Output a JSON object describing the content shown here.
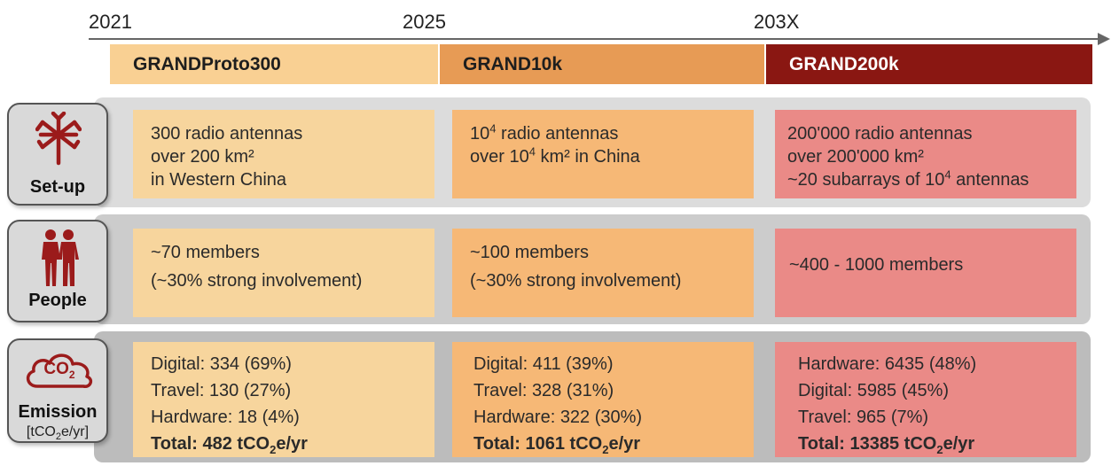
{
  "timeline": {
    "years": [
      "2021",
      "2025",
      "203X"
    ]
  },
  "phases": [
    {
      "label": "GRANDProto300"
    },
    {
      "label": "GRAND10k"
    },
    {
      "label": "GRAND200k"
    }
  ],
  "rows": {
    "setup": {
      "label": "Set-up",
      "icon": "radio-antenna-icon",
      "cells": [
        [
          "300 radio antennas",
          "over 200 km²",
          "in Western China"
        ],
        [
          "radio antennas",
          "km² in China"
        ],
        [
          "200'000 radio antennas",
          "over 200'000 km²",
          "~20 subarrays of 10",
          "antennas"
        ]
      ],
      "superscript": "4",
      "over_prefix": "over 10",
      "ten": "10"
    },
    "people": {
      "label": "People",
      "icon": "people-icon",
      "cells": [
        [
          "~70 members",
          "(~30% strong involvement)"
        ],
        [
          "~100 members",
          "(~30% strong involvement)"
        ],
        [
          "~400 - 1000 members"
        ]
      ]
    },
    "emission": {
      "label": "Emission",
      "unit_prefix": "[tCO",
      "unit_sub": "2",
      "unit_suffix": "e/yr]",
      "icon": "co2-cloud-icon",
      "icon_text": "CO",
      "icon_sub": "2",
      "cells": [
        {
          "lines": [
            "Digital: 334 (69%)",
            "Travel: 130 (27%)",
            "Hardware: 18 (4%)"
          ],
          "total_prefix": "Total: 482 tCO",
          "total_sub": "2",
          "total_suffix": "e/yr"
        },
        {
          "lines": [
            "Digital: 411 (39%)",
            "Travel: 328 (31%)",
            "Hardware: 322 (30%)"
          ],
          "total_prefix": "Total: 1061 tCO",
          "total_sub": "2",
          "total_suffix": "e/yr"
        },
        {
          "lines": [
            "Hardware: 6435 (48%)",
            "Digital: 5985 (45%)",
            "Travel: 965 (7%)"
          ],
          "total_prefix": "Total: 13385 tCO",
          "total_sub": "2",
          "total_suffix": "e/yr"
        }
      ]
    }
  },
  "colors": {
    "icon_red": "#9b1b1b"
  }
}
